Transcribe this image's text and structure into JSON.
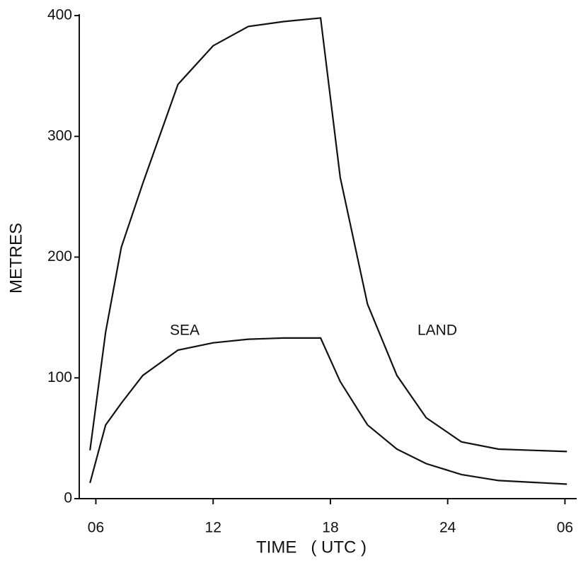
{
  "chart_data": {
    "type": "line",
    "x_label": "TIME   ( UTC )",
    "y_label": "METRES",
    "x": [
      5.7,
      6.5,
      7.3,
      8.4,
      10.2,
      12,
      13.8,
      15.6,
      17.5,
      18.5,
      19.9,
      21.4,
      22.9,
      24.7,
      26.6,
      30.1
    ],
    "series": [
      {
        "name": "LAND",
        "color": "#111111",
        "values": [
          40,
          138,
          208,
          261,
          343,
          375,
          391,
          395,
          398,
          266,
          161,
          102,
          67,
          47,
          41,
          39
        ]
      },
      {
        "name": "SEA",
        "color": "#111111",
        "values": [
          13,
          61,
          79,
          102,
          123,
          129,
          132,
          133,
          133,
          97,
          61,
          41,
          29,
          20,
          15,
          12
        ]
      }
    ],
    "xlim": [
      5.15,
      30.6
    ],
    "ylim": [
      0,
      400
    ],
    "xticks": [
      {
        "value": 6,
        "label": "06"
      },
      12,
      18,
      24,
      {
        "value": 30,
        "label": "06"
      }
    ],
    "yticks": [
      0,
      100,
      200,
      300,
      400
    ],
    "grid": false
  }
}
